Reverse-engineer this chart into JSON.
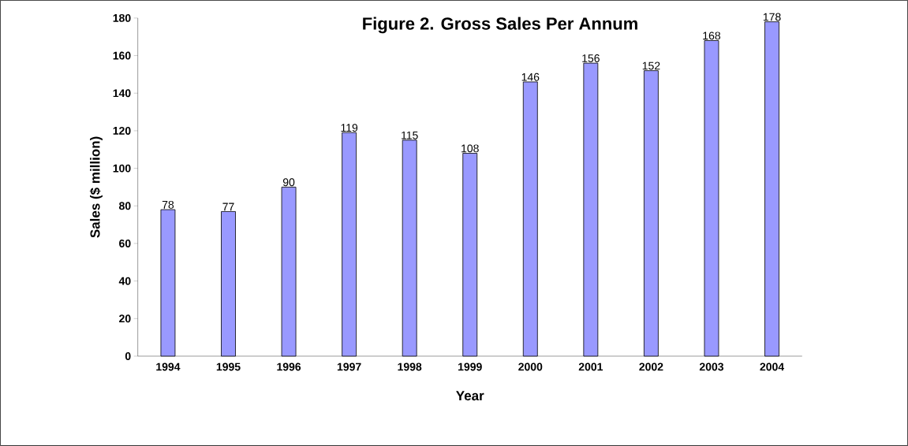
{
  "chart_data": {
    "type": "bar",
    "title": "Figure 2. Gross Sales Per Annum",
    "xlabel": "Year",
    "ylabel": "Sales ($ million)",
    "categories": [
      "1994",
      "1995",
      "1996",
      "1997",
      "1998",
      "1999",
      "2000",
      "2001",
      "2002",
      "2003",
      "2004"
    ],
    "values": [
      78,
      77,
      90,
      119,
      115,
      108,
      146,
      156,
      152,
      168,
      178
    ],
    "color": "#9999ff",
    "ylim": [
      0,
      180
    ],
    "yticks": [
      0,
      20,
      40,
      60,
      80,
      100,
      120,
      140,
      160,
      180
    ],
    "data_labels": true,
    "grid": false
  }
}
